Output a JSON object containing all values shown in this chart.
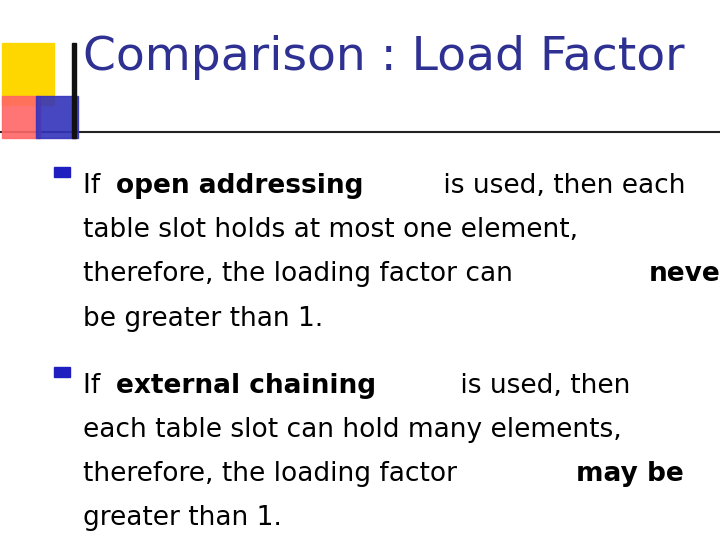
{
  "title": "Comparison : Load Factor",
  "title_color": "#2E3192",
  "title_fontsize": 34,
  "background_color": "#FFFFFF",
  "bullet_color": "#1F1FBF",
  "bullet1_lines": [
    [
      {
        "text": "If ",
        "bold": false
      },
      {
        "text": "open addressing",
        "bold": true
      },
      {
        "text": " is used, then each",
        "bold": false
      }
    ],
    [
      {
        "text": "table slot holds at most one element,",
        "bold": false
      }
    ],
    [
      {
        "text": "therefore, the loading factor can ",
        "bold": false
      },
      {
        "text": "never",
        "bold": true
      }
    ],
    [
      {
        "text": "be greater than 1.",
        "bold": false
      }
    ]
  ],
  "bullet2_lines": [
    [
      {
        "text": "If ",
        "bold": false
      },
      {
        "text": "external chaining",
        "bold": true
      },
      {
        "text": " is used, then",
        "bold": false
      }
    ],
    [
      {
        "text": "each table slot can hold many elements,",
        "bold": false
      }
    ],
    [
      {
        "text": "therefore, the loading factor ",
        "bold": false
      },
      {
        "text": "may be",
        "bold": true
      }
    ],
    [
      {
        "text": "greater than 1.",
        "bold": false
      }
    ]
  ],
  "text_fontsize": 19,
  "text_color": "#000000",
  "title_font": "DejaVu Sans",
  "body_font": "DejaVu Sans"
}
